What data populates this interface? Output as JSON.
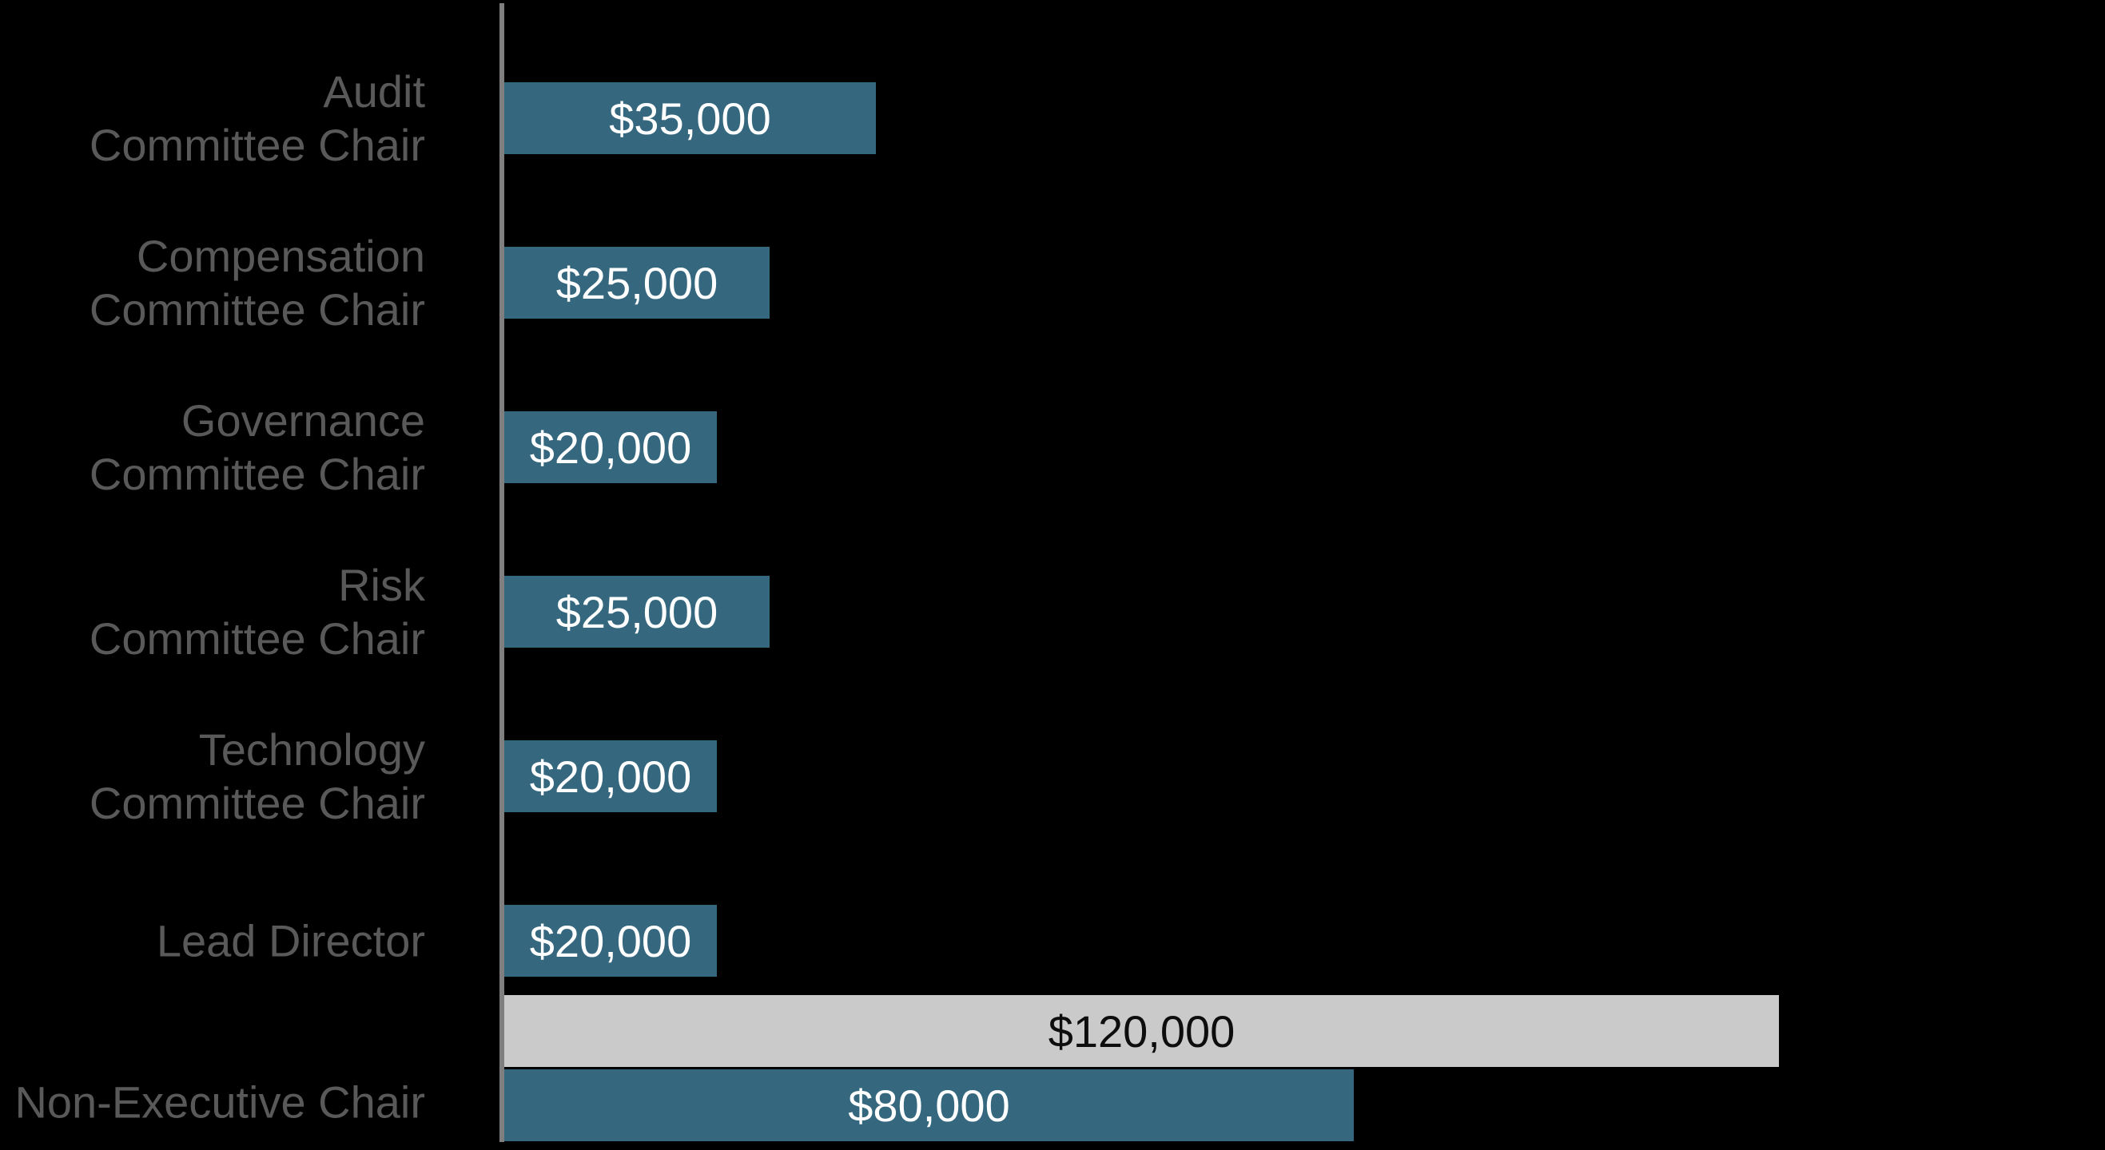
{
  "chart_data": {
    "type": "bar",
    "orientation": "horizontal",
    "title": "",
    "grid": false,
    "legend": false,
    "background_color": "#000000",
    "axis_line_color": "#7f7f7f",
    "xlim": [
      0,
      150000
    ],
    "colors": {
      "primary_bar": "#35687e",
      "secondary_bar": "#cacaca",
      "category_label": "#595959",
      "value_label_on_primary": "#ffffff",
      "value_label_on_secondary": "#0d0d0d"
    },
    "categories": [
      "Audit Committee Chair",
      "Compensation Committee Chair",
      "Governance Committee Chair",
      "Risk Committee Chair",
      "Technology Committee Chair",
      "Lead Director",
      "Non-Executive Chair"
    ],
    "rows": [
      {
        "category_lines": [
          "Audit",
          "Committee Chair"
        ],
        "bars": [
          {
            "value": 35000,
            "label": "$35,000",
            "style": "primary"
          }
        ]
      },
      {
        "category_lines": [
          "Compensation",
          "Committee Chair"
        ],
        "bars": [
          {
            "value": 25000,
            "label": "$25,000",
            "style": "primary"
          }
        ]
      },
      {
        "category_lines": [
          "Governance",
          "Committee Chair"
        ],
        "bars": [
          {
            "value": 20000,
            "label": "$20,000",
            "style": "primary"
          }
        ]
      },
      {
        "category_lines": [
          "Risk",
          "Committee Chair"
        ],
        "bars": [
          {
            "value": 25000,
            "label": "$25,000",
            "style": "primary"
          }
        ]
      },
      {
        "category_lines": [
          "Technology",
          "Committee Chair"
        ],
        "bars": [
          {
            "value": 20000,
            "label": "$20,000",
            "style": "primary"
          }
        ]
      },
      {
        "category_lines": [
          "Lead Director"
        ],
        "bars": [
          {
            "value": 20000,
            "label": "$20,000",
            "style": "primary"
          }
        ]
      },
      {
        "category_lines": [
          "Non-Executive Chair"
        ],
        "bars": [
          {
            "value": 120000,
            "label": "$120,000",
            "style": "secondary"
          },
          {
            "value": 80000,
            "label": "$80,000",
            "style": "primary"
          }
        ]
      }
    ]
  }
}
